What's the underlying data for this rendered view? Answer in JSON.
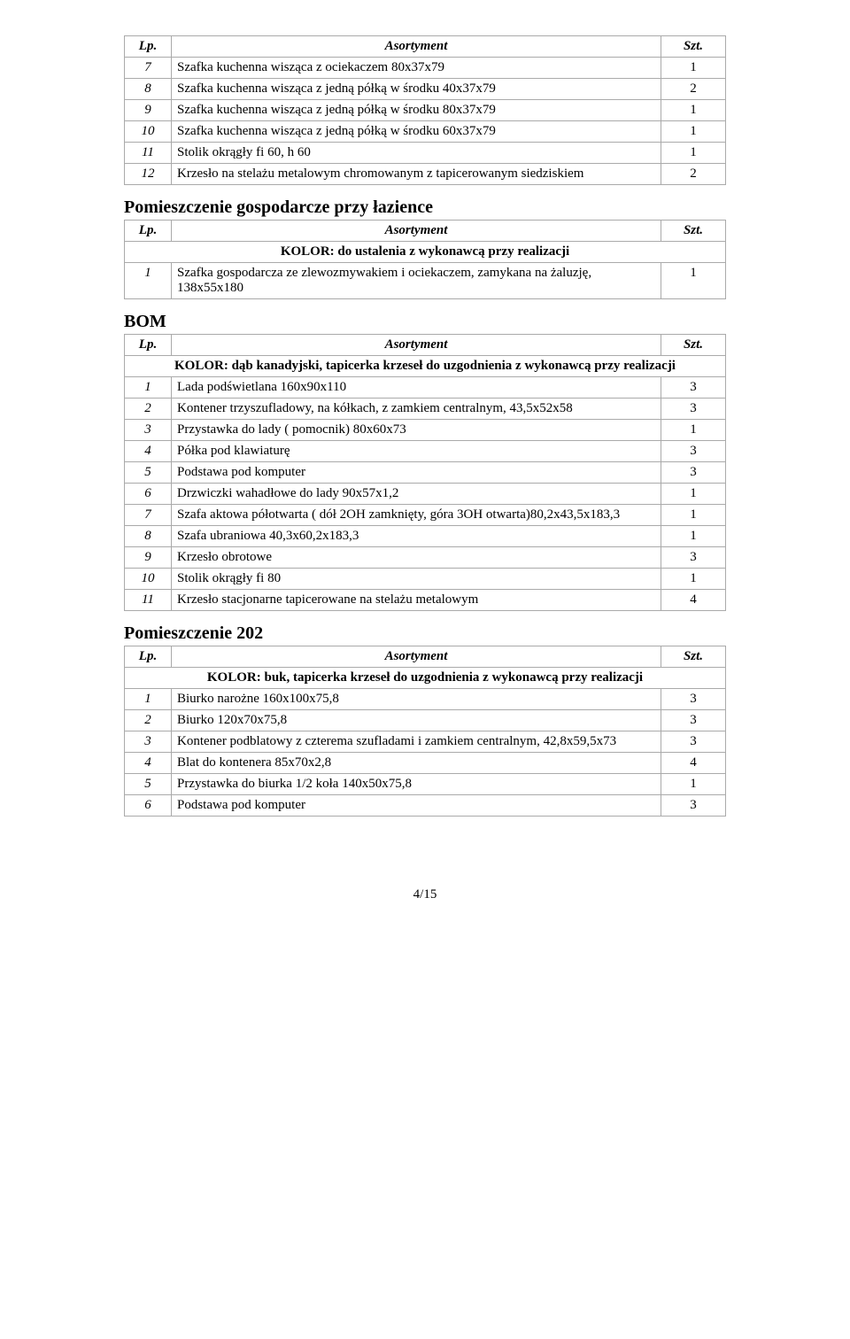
{
  "colors": {
    "text": "#000000",
    "background": "#ffffff",
    "border": "#aaaaaa"
  },
  "typography": {
    "body_fontsize": 15,
    "heading_fontsize": 20,
    "font_family": "Times New Roman"
  },
  "column_headers": {
    "lp": "Lp.",
    "asort": "Asortyment",
    "szt": "Szt."
  },
  "table1": {
    "rows": [
      {
        "lp": "7",
        "desc": "Szafka kuchenna wisząca z ociekaczem 80x37x79",
        "qty": "1"
      },
      {
        "lp": "8",
        "desc": "Szafka kuchenna wisząca z jedną półką w środku 40x37x79",
        "qty": "2"
      },
      {
        "lp": "9",
        "desc": "Szafka kuchenna wisząca z jedną półką w środku 80x37x79",
        "qty": "1"
      },
      {
        "lp": "10",
        "desc": "Szafka kuchenna wisząca z jedną półką w środku 60x37x79",
        "qty": "1"
      },
      {
        "lp": "11",
        "desc": "Stolik okrągły fi 60, h 60",
        "qty": "1"
      },
      {
        "lp": "12",
        "desc": "Krzesło na stelażu metalowym chromowanym z tapicerowanym siedziskiem",
        "qty": "2"
      }
    ]
  },
  "section2": {
    "title": "Pomieszczenie gospodarcze przy łazience",
    "kolor": "KOLOR: do ustalenia z wykonawcą przy realizacji",
    "rows": [
      {
        "lp": "1",
        "desc": "Szafka gospodarcza ze zlewozmywakiem i ociekaczem, zamykana na żaluzję, 138x55x180",
        "qty": "1"
      }
    ]
  },
  "section3": {
    "title": "BOM",
    "kolor": "KOLOR: dąb kanadyjski, tapicerka krzeseł do uzgodnienia z wykonawcą przy realizacji",
    "rows": [
      {
        "lp": "1",
        "desc": "Lada podświetlana 160x90x110",
        "qty": "3"
      },
      {
        "lp": "2",
        "desc": "Kontener trzyszufladowy, na kółkach, z zamkiem centralnym, 43,5x52x58",
        "qty": "3"
      },
      {
        "lp": "3",
        "desc": "Przystawka do lady ( pomocnik) 80x60x73",
        "qty": "1"
      },
      {
        "lp": "4",
        "desc": "Półka pod klawiaturę",
        "qty": "3"
      },
      {
        "lp": "5",
        "desc": "Podstawa pod komputer",
        "qty": "3"
      },
      {
        "lp": "6",
        "desc": "Drzwiczki wahadłowe do lady 90x57x1,2",
        "qty": "1"
      },
      {
        "lp": "7",
        "desc": "Szafa aktowa półotwarta ( dół 2OH zamknięty, góra 3OH otwarta)80,2x43,5x183,3",
        "qty": "1"
      },
      {
        "lp": "8",
        "desc": "Szafa ubraniowa 40,3x60,2x183,3",
        "qty": "1"
      },
      {
        "lp": "9",
        "desc": "Krzesło obrotowe",
        "qty": "3"
      },
      {
        "lp": "10",
        "desc": "Stolik okrągły fi 80",
        "qty": "1"
      },
      {
        "lp": "11",
        "desc": "Krzesło stacjonarne tapicerowane na stelażu metalowym",
        "qty": "4"
      }
    ]
  },
  "section4": {
    "title": "Pomieszczenie 202",
    "kolor": "KOLOR: buk,  tapicerka krzeseł do uzgodnienia z wykonawcą przy realizacji",
    "rows": [
      {
        "lp": "1",
        "desc": "Biurko narożne 160x100x75,8",
        "qty": "3"
      },
      {
        "lp": "2",
        "desc": "Biurko 120x70x75,8",
        "qty": "3"
      },
      {
        "lp": "3",
        "desc": "Kontener podblatowy z czterema szufladami i zamkiem centralnym, 42,8x59,5x73",
        "qty": "3"
      },
      {
        "lp": "4",
        "desc": "Blat do kontenera 85x70x2,8",
        "qty": "4"
      },
      {
        "lp": "5",
        "desc": "Przystawka do biurka 1/2 koła 140x50x75,8",
        "qty": "1"
      },
      {
        "lp": "6",
        "desc": "Podstawa pod komputer",
        "qty": "3"
      }
    ]
  },
  "footer": "4/15"
}
